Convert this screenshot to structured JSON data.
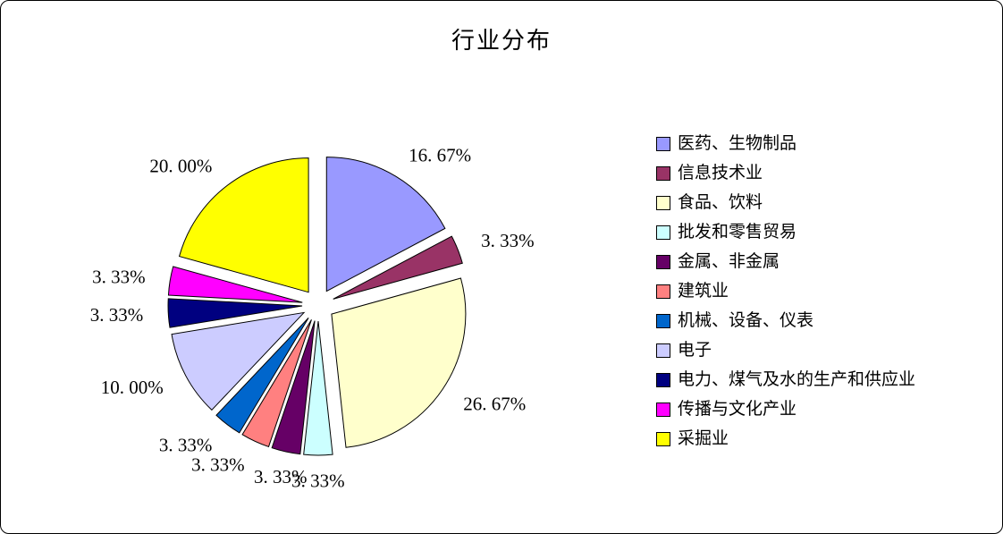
{
  "chart_data": {
    "type": "pie",
    "title": "行业分布",
    "legend_position": "right",
    "start_angle_deg": -90,
    "direction": "clockwise",
    "exploded": true,
    "slices": [
      {
        "label": "医药、生物制品",
        "value": 16.67,
        "display": "16. 67%",
        "color": "#9999FF"
      },
      {
        "label": "信息技术业",
        "value": 3.33,
        "display": "3. 33%",
        "color": "#993366"
      },
      {
        "label": "食品、饮料",
        "value": 26.67,
        "display": "26. 67%",
        "color": "#FFFFCC"
      },
      {
        "label": "批发和零售贸易",
        "value": 3.33,
        "display": "3. 33%",
        "color": "#CCFFFF"
      },
      {
        "label": "金属、非金属",
        "value": 3.33,
        "display": "3. 33%",
        "color": "#660066"
      },
      {
        "label": "建筑业",
        "value": 3.33,
        "display": "3. 33%",
        "color": "#FF8080"
      },
      {
        "label": "机械、设备、仪表",
        "value": 3.33,
        "display": "3. 33%",
        "color": "#0066CC"
      },
      {
        "label": "电子",
        "value": 10.0,
        "display": "10. 00%",
        "color": "#CCCCFF"
      },
      {
        "label": "电力、煤气及水的生产和供应业",
        "value": 3.33,
        "display": "3. 33%",
        "color": "#000080"
      },
      {
        "label": "传播与文化产业",
        "value": 3.33,
        "display": "3. 33%",
        "color": "#FF00FF"
      },
      {
        "label": "采掘业",
        "value": 20.0,
        "display": "20. 00%",
        "color": "#FFFF00"
      }
    ]
  },
  "colors": {
    "border": "#000000",
    "background": "#FFFFFF",
    "text": "#000000"
  }
}
